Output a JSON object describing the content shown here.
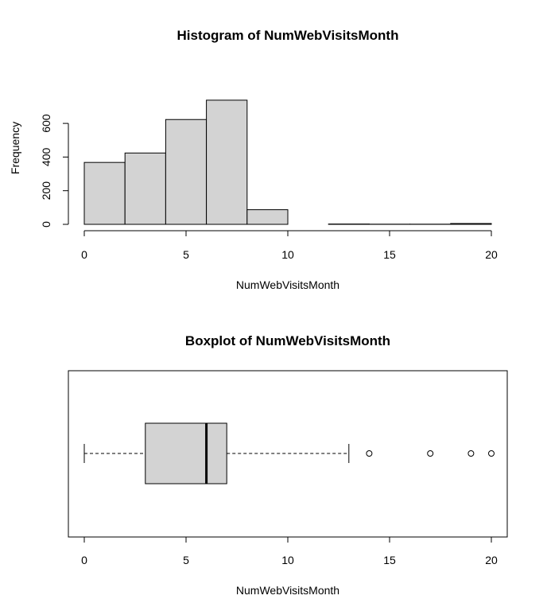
{
  "chart_data": [
    {
      "type": "histogram",
      "title": "Histogram of NumWebVisitsMonth",
      "xlabel": "NumWebVisitsMonth",
      "ylabel": "Frequency",
      "xlim": [
        0,
        20
      ],
      "ylim": [
        0,
        750
      ],
      "x_ticks": [
        0,
        5,
        10,
        15,
        20
      ],
      "y_ticks": [
        0,
        200,
        400,
        600
      ],
      "bin_width": 2,
      "bins": [
        {
          "from": 0,
          "to": 2,
          "count": 368
        },
        {
          "from": 2,
          "to": 4,
          "count": 424
        },
        {
          "from": 4,
          "to": 6,
          "count": 623
        },
        {
          "from": 6,
          "to": 8,
          "count": 738
        },
        {
          "from": 8,
          "to": 10,
          "count": 87
        },
        {
          "from": 10,
          "to": 12,
          "count": 0
        },
        {
          "from": 12,
          "to": 14,
          "count": 2
        },
        {
          "from": 14,
          "to": 16,
          "count": 1
        },
        {
          "from": 16,
          "to": 18,
          "count": 1
        },
        {
          "from": 18,
          "to": 20,
          "count": 5
        }
      ],
      "fill": "#d3d3d3",
      "grid": false
    },
    {
      "type": "boxplot",
      "title": "Boxplot of NumWebVisitsMonth",
      "xlabel": "NumWebVisitsMonth",
      "orientation": "horizontal",
      "xlim": [
        0,
        20
      ],
      "x_ticks": [
        0,
        5,
        10,
        15,
        20
      ],
      "whisker_low": 0,
      "q1": 3,
      "median": 6,
      "q3": 7,
      "whisker_high": 13,
      "outliers": [
        14,
        17,
        19,
        20
      ],
      "fill": "#d3d3d3",
      "grid": false
    }
  ]
}
